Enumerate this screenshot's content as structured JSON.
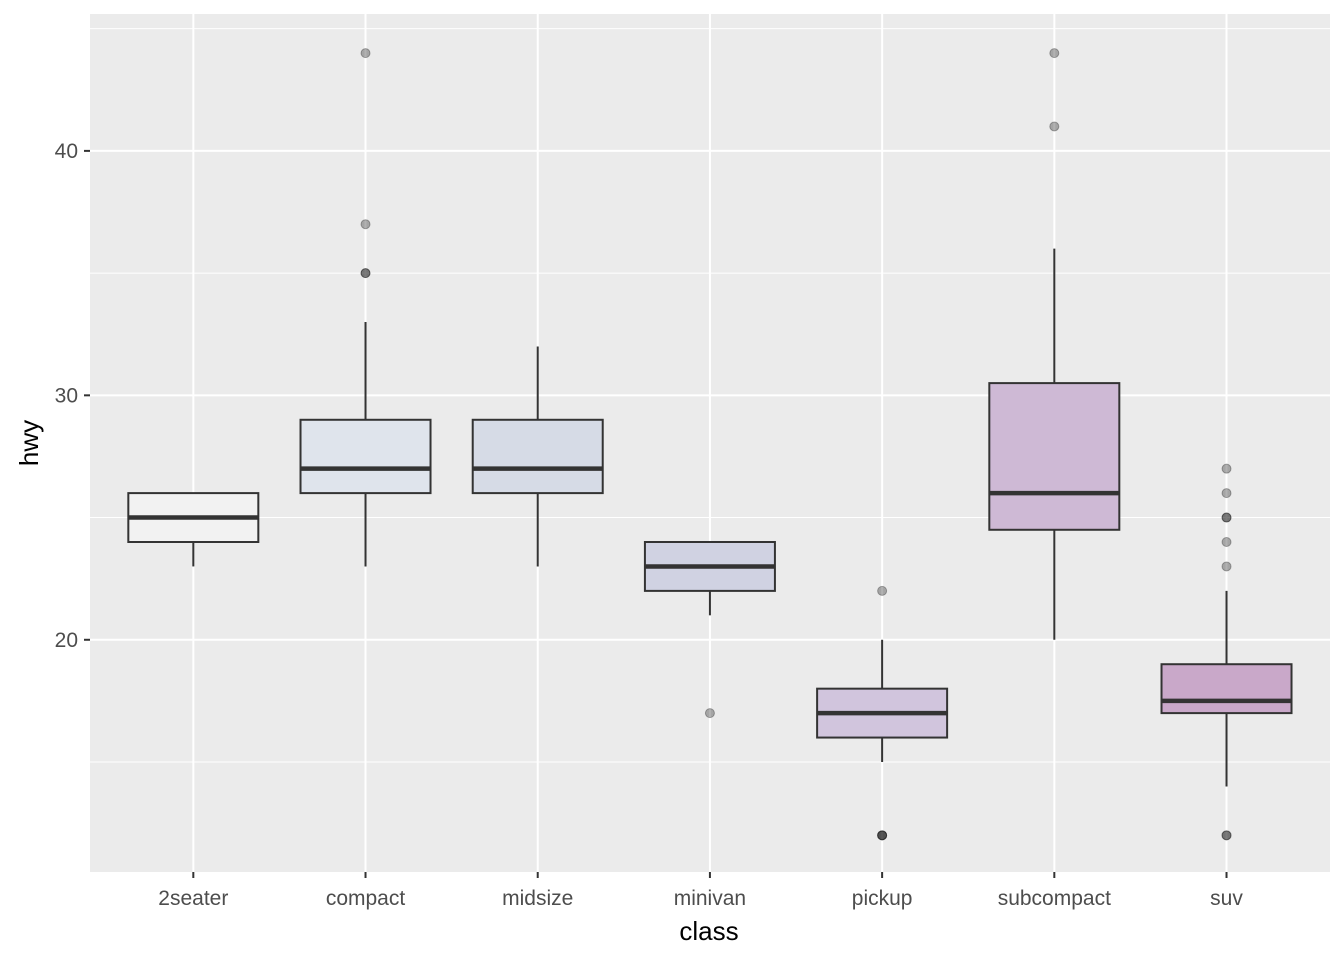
{
  "chart_data": {
    "type": "box",
    "xlabel": "class",
    "ylabel": "hwy",
    "categories": [
      "2seater",
      "compact",
      "midsize",
      "minivan",
      "pickup",
      "subcompact",
      "suv"
    ],
    "ylim": [
      10.5,
      45.6
    ],
    "y_ticks": [
      20,
      30,
      40
    ],
    "y_tick_labels": [
      "20",
      "30",
      "40"
    ],
    "grid": true,
    "panel_background": "#ebebeb",
    "grid_color": "#ffffff",
    "box_outline_color": "#333333",
    "outlier_color": "#999999",
    "boxes": [
      {
        "category": "2seater",
        "lower_whisker": 23,
        "q1": 24,
        "median": 25,
        "q3": 26,
        "upper_whisker": 26,
        "outliers": [],
        "fill": "#f2f2f2"
      },
      {
        "category": "compact",
        "lower_whisker": 23,
        "q1": 26,
        "median": 27,
        "q3": 29,
        "upper_whisker": 33,
        "outliers": [
          35,
          35,
          37,
          44
        ],
        "fill": "#dfe4ec"
      },
      {
        "category": "midsize",
        "lower_whisker": 23,
        "q1": 26,
        "median": 27,
        "q3": 29,
        "upper_whisker": 32,
        "outliers": [],
        "fill": "#d6dbe6"
      },
      {
        "category": "minivan",
        "lower_whisker": 21,
        "q1": 22,
        "median": 23,
        "q3": 24,
        "upper_whisker": 24,
        "outliers": [
          17
        ],
        "fill": "#d0d2e2"
      },
      {
        "category": "pickup",
        "lower_whisker": 15,
        "q1": 16,
        "median": 17,
        "q3": 18,
        "upper_whisker": 20,
        "outliers": [
          12,
          12,
          12,
          22
        ],
        "fill": "#d1c5dd"
      },
      {
        "category": "subcompact",
        "lower_whisker": 20,
        "q1": 24.5,
        "median": 26,
        "q3": 30.5,
        "upper_whisker": 36,
        "outliers": [
          41,
          44
        ],
        "fill": "#ceb9d5"
      },
      {
        "category": "suv",
        "lower_whisker": 14,
        "q1": 17,
        "median": 17.5,
        "q3": 19,
        "upper_whisker": 22,
        "outliers": [
          12,
          12,
          23,
          24,
          25,
          25,
          26,
          27
        ],
        "fill": "#c9a8c9"
      }
    ]
  }
}
